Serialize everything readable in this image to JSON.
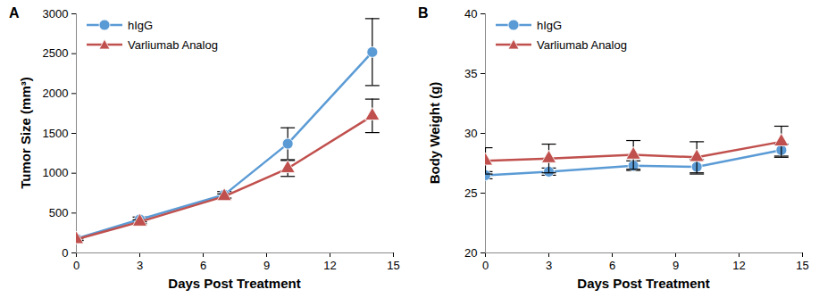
{
  "chart_data": [
    {
      "type": "line",
      "title": "A",
      "x_label": "Days Post Treatment",
      "y_label": "Tumor Size (mm³)",
      "x": [
        0,
        3,
        7,
        10,
        14
      ],
      "xlim": [
        0,
        15
      ],
      "xticks": [
        0,
        3,
        6,
        9,
        12,
        15
      ],
      "ylim": [
        0,
        3000
      ],
      "yticks": [
        0,
        500,
        1000,
        1500,
        2000,
        2500,
        3000
      ],
      "legend": "top-left",
      "series": [
        {
          "name": "hIgG",
          "color": "#5b9bd5",
          "marker": "circle",
          "values": [
            180,
            420,
            730,
            1370,
            2520
          ],
          "errors": [
            20,
            30,
            40,
            200,
            420
          ]
        },
        {
          "name": "Varliumab Analog",
          "color": "#c0504d",
          "marker": "triangle",
          "values": [
            170,
            390,
            710,
            1060,
            1720
          ],
          "errors": [
            15,
            25,
            30,
            100,
            210
          ]
        }
      ]
    },
    {
      "type": "line",
      "title": "B",
      "x_label": "Days Post Treatment",
      "y_label": "Body Weight (g)",
      "x": [
        0,
        3,
        7,
        10,
        14
      ],
      "xlim": [
        0,
        15
      ],
      "xticks": [
        0,
        3,
        6,
        9,
        12,
        15
      ],
      "ylim": [
        20,
        40
      ],
      "yticks": [
        20,
        25,
        30,
        35,
        40
      ],
      "legend": "top-left",
      "series": [
        {
          "name": "hIgG",
          "color": "#5b9bd5",
          "marker": "circle",
          "values": [
            26.5,
            26.8,
            27.3,
            27.2,
            28.6
          ],
          "errors": [
            0.3,
            0.3,
            0.4,
            0.6,
            0.5
          ]
        },
        {
          "name": "Varliumab Analog",
          "color": "#c0504d",
          "marker": "triangle",
          "values": [
            27.7,
            27.9,
            28.2,
            28.0,
            29.3
          ],
          "errors": [
            1.1,
            1.2,
            1.2,
            1.3,
            1.3
          ]
        }
      ]
    }
  ]
}
